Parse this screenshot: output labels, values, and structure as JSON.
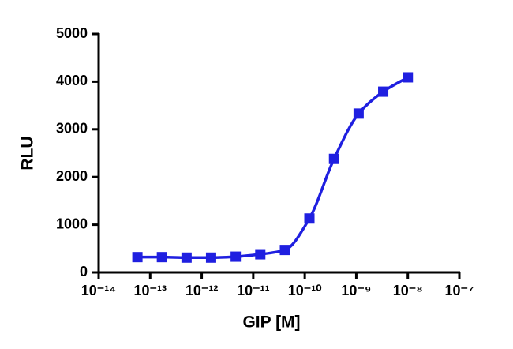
{
  "chart_data": {
    "type": "scatter",
    "xlabel": "GIP [M]",
    "ylabel": "RLU",
    "xscale": "log",
    "x": [
      5.65e-14,
      1.69e-13,
      5.08e-13,
      1.52e-12,
      4.57e-12,
      1.37e-11,
      4.12e-11,
      1.23e-10,
      3.7e-10,
      1.11e-09,
      3.33e-09,
      1e-08
    ],
    "series": [
      {
        "color": "#1f1fe0",
        "line": true,
        "values": [
          320,
          320,
          310,
          310,
          330,
          380,
          470,
          1130,
          2380,
          3330,
          3790,
          4090
        ]
      }
    ],
    "xlim": [
      1e-14,
      1e-07
    ],
    "xticks": [
      {
        "value": 1e-14,
        "label": "10⁻¹⁴"
      },
      {
        "value": 1e-13,
        "label": "10⁻¹³"
      },
      {
        "value": 1e-12,
        "label": "10⁻¹²"
      },
      {
        "value": 1e-11,
        "label": "10⁻¹¹"
      },
      {
        "value": 1e-10,
        "label": "10⁻¹⁰"
      },
      {
        "value": 1e-09,
        "label": "10⁻⁹"
      },
      {
        "value": 1e-08,
        "label": "10⁻⁸"
      },
      {
        "value": 1e-07,
        "label": "10⁻⁷"
      }
    ],
    "ylim": [
      0,
      5000
    ],
    "yticks": [
      0,
      1000,
      2000,
      3000,
      4000,
      5000
    ]
  }
}
